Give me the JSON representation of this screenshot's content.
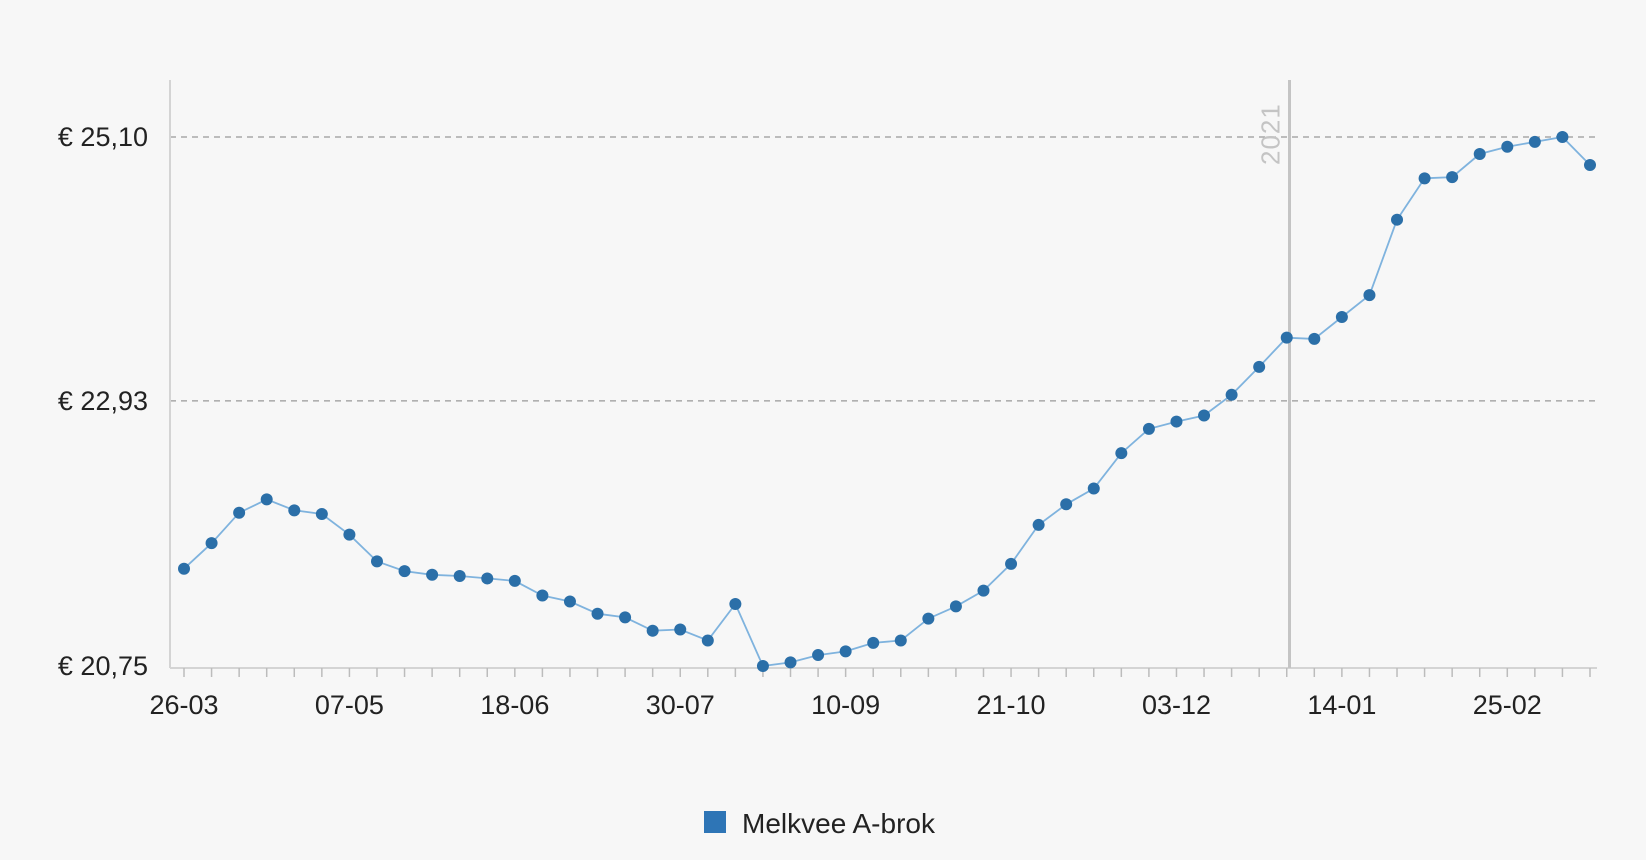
{
  "chart_data": {
    "type": "line",
    "y_tick_labels": [
      "€ 25,10",
      "€ 22,93",
      "€ 20,75"
    ],
    "y_tick_values": [
      25.1,
      22.93,
      20.75
    ],
    "ylim": [
      20.75,
      25.1
    ],
    "x_tick_labels": [
      "26-03",
      "07-05",
      "18-06",
      "30-07",
      "10-09",
      "21-10",
      "03-12",
      "14-01",
      "25-02"
    ],
    "x_tick_positions": [
      0,
      6,
      12,
      18,
      24,
      30,
      36,
      42,
      48
    ],
    "grid": "horizontal dashed at y ticks",
    "annotation": {
      "label": "2021",
      "at_index": 40.1
    },
    "legend": {
      "position": "bottom-center",
      "entries": [
        "Melkvee A-brok"
      ]
    },
    "colors": {
      "series": "#2e75b6",
      "line": "#7fb3de",
      "marker": "#2b6fa8",
      "grid": "#999999",
      "annotation": "#c4c4c4",
      "background": "#f7f7f7"
    },
    "series": [
      {
        "name": "Melkvee A-brok",
        "values": [
          21.55,
          21.76,
          22.01,
          22.12,
          22.03,
          22.0,
          21.83,
          21.61,
          21.53,
          21.5,
          21.49,
          21.47,
          21.45,
          21.33,
          21.28,
          21.18,
          21.15,
          21.04,
          21.05,
          20.96,
          21.26,
          20.75,
          20.78,
          20.84,
          20.87,
          20.94,
          20.96,
          21.14,
          21.24,
          21.37,
          21.59,
          21.91,
          22.08,
          22.21,
          22.5,
          22.7,
          22.76,
          22.81,
          22.98,
          23.21,
          23.45,
          23.44,
          23.62,
          23.8,
          24.42,
          24.76,
          24.77,
          24.96,
          25.02,
          25.06,
          25.1,
          24.87
        ]
      }
    ]
  }
}
